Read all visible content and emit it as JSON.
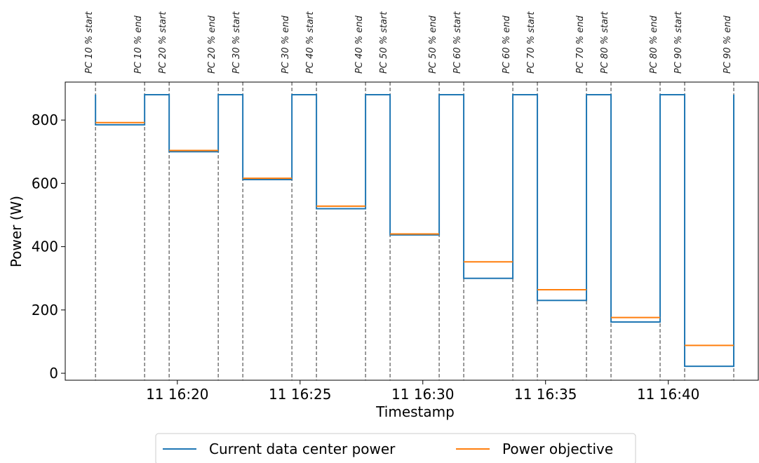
{
  "chart_data": {
    "type": "line",
    "xlabel": "Timestamp",
    "ylabel": "Power (W)",
    "xlim": [
      "11 16:15:26",
      "11 16:43:40"
    ],
    "xticks": [
      {
        "value": "11 16:20:00",
        "label": "11 16:20"
      },
      {
        "value": "11 16:25:00",
        "label": "11 16:25"
      },
      {
        "value": "11 16:30:00",
        "label": "11 16:30"
      },
      {
        "value": "11 16:35:00",
        "label": "11 16:35"
      },
      {
        "value": "11 16:40:00",
        "label": "11 16:40"
      }
    ],
    "ylim": [
      -22,
      920
    ],
    "yticks": [
      0,
      200,
      400,
      600,
      800
    ],
    "legend": "bottom",
    "events": [
      {
        "label": "PC 10 % start",
        "x": "11 16:16:40"
      },
      {
        "label": "PC 10 % end",
        "x": "11 16:18:40"
      },
      {
        "label": "PC 20 % start",
        "x": "11 16:19:40"
      },
      {
        "label": "PC 20 % end",
        "x": "11 16:21:40"
      },
      {
        "label": "PC 30 % start",
        "x": "11 16:22:40"
      },
      {
        "label": "PC 30 % end",
        "x": "11 16:24:40"
      },
      {
        "label": "PC 40 % start",
        "x": "11 16:25:40"
      },
      {
        "label": "PC 40 % end",
        "x": "11 16:27:40"
      },
      {
        "label": "PC 50 % start",
        "x": "11 16:28:40"
      },
      {
        "label": "PC 50 % end",
        "x": "11 16:30:40"
      },
      {
        "label": "PC 60 % start",
        "x": "11 16:31:40"
      },
      {
        "label": "PC 60 % end",
        "x": "11 16:33:40"
      },
      {
        "label": "PC 70 % start",
        "x": "11 16:34:40"
      },
      {
        "label": "PC 70 % end",
        "x": "11 16:36:40"
      },
      {
        "label": "PC 80 % start",
        "x": "11 16:37:40"
      },
      {
        "label": "PC 80 % end",
        "x": "11 16:39:40"
      },
      {
        "label": "PC 90 % start",
        "x": "11 16:40:40"
      },
      {
        "label": "PC 90 % end",
        "x": "11 16:42:40"
      }
    ],
    "series": [
      {
        "name": "Current data center power",
        "color": "#1f77b4",
        "x": [
          "11 16:16:40",
          "11 16:16:40",
          "11 16:18:40",
          "11 16:18:40",
          "11 16:19:40",
          "11 16:19:40",
          "11 16:21:40",
          "11 16:21:40",
          "11 16:22:40",
          "11 16:22:40",
          "11 16:24:40",
          "11 16:24:40",
          "11 16:25:40",
          "11 16:25:40",
          "11 16:27:40",
          "11 16:27:40",
          "11 16:28:40",
          "11 16:28:40",
          "11 16:30:40",
          "11 16:30:40",
          "11 16:31:40",
          "11 16:31:40",
          "11 16:33:40",
          "11 16:33:40",
          "11 16:34:40",
          "11 16:34:40",
          "11 16:36:40",
          "11 16:36:40",
          "11 16:37:40",
          "11 16:37:40",
          "11 16:39:40",
          "11 16:39:40",
          "11 16:40:40",
          "11 16:40:40",
          "11 16:42:40",
          "11 16:42:40"
        ],
        "values": [
          880,
          785,
          785,
          880,
          880,
          700,
          700,
          880,
          880,
          612,
          612,
          880,
          880,
          520,
          520,
          880,
          880,
          437,
          437,
          880,
          880,
          300,
          300,
          880,
          880,
          230,
          230,
          880,
          880,
          162,
          162,
          880,
          880,
          22,
          22,
          880
        ]
      },
      {
        "name": "Power objective",
        "color": "#ff7f0e",
        "x": [
          "11 16:16:40",
          "11 16:18:40",
          "11 16:18:40",
          "11 16:19:40",
          "11 16:21:40",
          "11 16:21:40",
          "11 16:22:40",
          "11 16:24:40",
          "11 16:24:40",
          "11 16:25:40",
          "11 16:27:40",
          "11 16:27:40",
          "11 16:28:40",
          "11 16:30:40",
          "11 16:30:40",
          "11 16:31:40",
          "11 16:33:40",
          "11 16:33:40",
          "11 16:34:40",
          "11 16:36:40",
          "11 16:36:40",
          "11 16:37:40",
          "11 16:39:40",
          "11 16:39:40",
          "11 16:40:40",
          "11 16:42:40"
        ],
        "values": [
          792,
          792,
          null,
          704,
          704,
          null,
          616,
          616,
          null,
          528,
          528,
          null,
          440,
          440,
          null,
          352,
          352,
          null,
          264,
          264,
          null,
          176,
          176,
          null,
          88,
          88
        ]
      }
    ]
  }
}
